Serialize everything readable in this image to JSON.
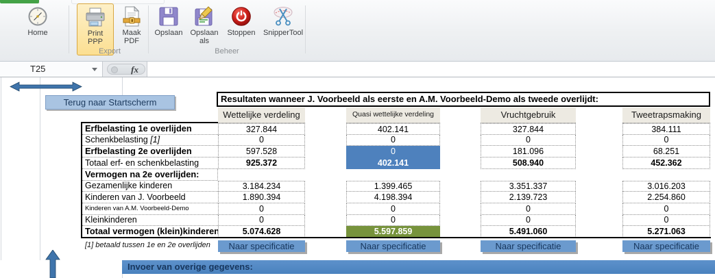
{
  "ribbon": {
    "groups": [
      {
        "label": "",
        "buttons": [
          {
            "label": "Home",
            "icon": "home-compass-icon",
            "selected": false
          }
        ]
      },
      {
        "label": "Export",
        "buttons": [
          {
            "label": "Print PPP",
            "icon": "printer-icon",
            "selected": true
          },
          {
            "label": "Maak PDF",
            "icon": "pdf-document-icon",
            "selected": false
          }
        ]
      },
      {
        "label": "Beheer",
        "buttons": [
          {
            "label": "Opslaan",
            "icon": "save-floppy-icon",
            "selected": false
          },
          {
            "label": "Opslaan als",
            "icon": "save-as-floppy-pencil-icon",
            "selected": false
          },
          {
            "label": "Stoppen",
            "icon": "power-stop-icon",
            "selected": false
          },
          {
            "label": "SnipperTool",
            "icon": "scissors-snip-icon",
            "selected": false
          }
        ]
      }
    ],
    "active_tab_color": "#44a247"
  },
  "formula_bar": {
    "cell_reference": "T25",
    "fx_label": "fx"
  },
  "sheet": {
    "back_button_label": "Terug naar Startscherm",
    "table": {
      "title": "Resultaten wanneer J. Voorbeeld als eerste en A.M. Voorbeeld-Demo als tweede overlijdt:",
      "columns": [
        "Wettelijke verdeling",
        "Quasi wettelijke verdeling",
        "Vruchtgebruik",
        "Tweetrapsmaking"
      ],
      "rows": [
        {
          "label": "Erfbelasting 1e overlijden",
          "label_style": "bold",
          "values": [
            "327.844",
            "402.141",
            "327.844",
            "384.111"
          ],
          "values_bold": false,
          "cell_styles": null
        },
        {
          "label": "Schenkbelasting",
          "ref": "[1]",
          "label_style": "normal",
          "values": [
            "0",
            "0",
            "0",
            "0"
          ],
          "values_bold": false,
          "cell_styles": null
        },
        {
          "label": "Erfbelasting 2e overlijden",
          "label_style": "bold",
          "values": [
            "597.528",
            "0",
            "181.096",
            "68.251"
          ],
          "values_bold": false,
          "cell_styles": [
            null,
            "blue",
            null,
            null
          ]
        },
        {
          "label": "Totaal erf- en schenkbelasting",
          "label_style": "normal",
          "values": [
            "925.372",
            "402.141",
            "508.940",
            "452.362"
          ],
          "values_bold": true,
          "cell_styles": [
            null,
            "blue",
            null,
            null
          ]
        },
        {
          "label": "Vermogen na 2e overlijden:",
          "label_style": "bold",
          "values": null,
          "values_bold": false,
          "cell_styles": null
        },
        {
          "label": "Gezamenlijke kinderen",
          "label_style": "normal",
          "values": [
            "3.184.234",
            "1.399.465",
            "3.351.337",
            "3.016.203"
          ],
          "values_bold": false,
          "cell_styles": null
        },
        {
          "label": "Kinderen van J. Voorbeeld",
          "label_style": "normal",
          "values": [
            "1.890.394",
            "4.198.394",
            "2.139.723",
            "2.254.860"
          ],
          "values_bold": false,
          "cell_styles": null
        },
        {
          "label": "Kinderen van A.M. Voorbeeld-Demo",
          "label_style": "small",
          "values": [
            "0",
            "0",
            "0",
            "0"
          ],
          "values_bold": false,
          "cell_styles": null
        },
        {
          "label": "Kleinkinderen",
          "label_style": "normal",
          "values": [
            "0",
            "0",
            "0",
            "0"
          ],
          "values_bold": false,
          "cell_styles": null
        },
        {
          "label": "Totaal vermogen (klein)kinderen",
          "label_style": "bold",
          "values": [
            "5.074.628",
            "5.597.859",
            "5.491.060",
            "5.271.063"
          ],
          "values_bold": true,
          "cell_styles": [
            null,
            "green",
            null,
            null
          ]
        }
      ],
      "footnote": "[1] betaald tussen 1e en 2e overlijden",
      "spec_button_label": "Naar specificatie"
    },
    "bottom_bar_label": "Invoer van overige gegevens:"
  },
  "colors": {
    "highlight_blue": "#4e81bd",
    "highlight_green": "#77933c",
    "header_bg": "#edeae2",
    "spec_button_bg": "#6b9ace",
    "back_button_bg": "#a9c4e2",
    "bottom_bar_bg": "#4e86c0",
    "selected_ribbon_button_bg": "#fcdf92",
    "arrow_blue": "#3f74ab",
    "active_tab_green": "#44a247"
  }
}
